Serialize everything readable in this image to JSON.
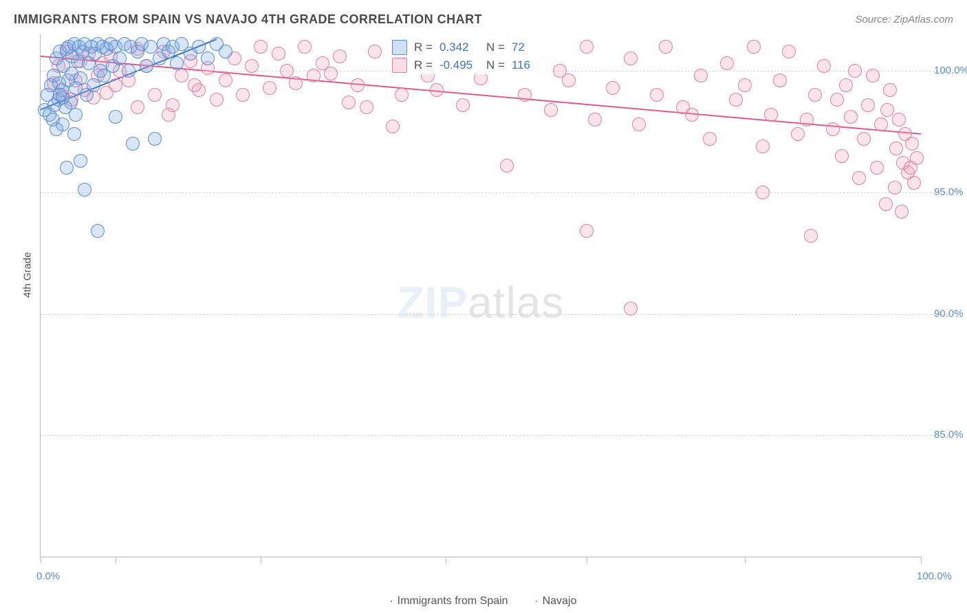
{
  "title": "IMMIGRANTS FROM SPAIN VS NAVAJO 4TH GRADE CORRELATION CHART",
  "source": "Source: ZipAtlas.com",
  "watermark_bold": "ZIP",
  "watermark_light": "atlas",
  "ylabel": "4th Grade",
  "chart": {
    "type": "scatter",
    "xlim": [
      0,
      100
    ],
    "ylim": [
      80,
      101.5
    ],
    "xtick_positions": [
      0,
      8.5,
      25,
      46,
      62,
      80,
      100
    ],
    "xtick_labels": {
      "0": "0.0%",
      "100": "100.0%"
    },
    "ytick_positions": [
      85,
      90,
      95,
      100
    ],
    "ytick_labels": {
      "85": "85.0%",
      "90": "90.0%",
      "95": "95.0%",
      "100": "100.0%"
    },
    "background": "#ffffff",
    "grid_color": "#d8d8d8",
    "axis_color": "#bbbbbb",
    "tick_label_color": "#5b8cd6"
  },
  "series": {
    "blue": {
      "label": "Immigrants from Spain",
      "color_fill": "rgba(120,165,224,0.28)",
      "color_stroke": "#5b8cd6",
      "marker_size": 18,
      "R": "0.342",
      "N": "72",
      "trend": {
        "x1": 0,
        "y1": 98.4,
        "x2": 20,
        "y2": 101.3,
        "color": "#2e6cc0",
        "width": 2
      },
      "points": [
        [
          0.5,
          98.4
        ],
        [
          0.8,
          99.0
        ],
        [
          1.0,
          98.2
        ],
        [
          1.2,
          99.4
        ],
        [
          1.4,
          98.0
        ],
        [
          1.5,
          99.8
        ],
        [
          1.6,
          98.6
        ],
        [
          1.8,
          100.5
        ],
        [
          2.0,
          98.8
        ],
        [
          2.1,
          99.5
        ],
        [
          2.2,
          100.8
        ],
        [
          2.4,
          99.2
        ],
        [
          2.5,
          97.8
        ],
        [
          2.6,
          100.2
        ],
        [
          2.8,
          98.5
        ],
        [
          3.0,
          100.9
        ],
        [
          3.1,
          99.6
        ],
        [
          3.2,
          101.0
        ],
        [
          3.4,
          98.7
        ],
        [
          3.5,
          99.9
        ],
        [
          3.6,
          100.6
        ],
        [
          3.8,
          101.1
        ],
        [
          4.0,
          99.3
        ],
        [
          4.2,
          100.4
        ],
        [
          4.4,
          101.0
        ],
        [
          4.5,
          99.7
        ],
        [
          4.8,
          100.8
        ],
        [
          5.0,
          101.1
        ],
        [
          5.2,
          99.0
        ],
        [
          5.5,
          100.3
        ],
        [
          5.8,
          101.0
        ],
        [
          6.0,
          99.4
        ],
        [
          6.2,
          100.7
        ],
        [
          6.5,
          101.1
        ],
        [
          6.8,
          100.0
        ],
        [
          7.0,
          101.0
        ],
        [
          7.2,
          99.8
        ],
        [
          7.5,
          100.9
        ],
        [
          8.0,
          101.1
        ],
        [
          8.2,
          100.2
        ],
        [
          8.5,
          101.0
        ],
        [
          9.0,
          100.5
        ],
        [
          9.5,
          101.1
        ],
        [
          10.0,
          100.0
        ],
        [
          10.2,
          101.0
        ],
        [
          10.5,
          97.0
        ],
        [
          11.0,
          100.8
        ],
        [
          11.5,
          101.1
        ],
        [
          12.0,
          100.2
        ],
        [
          12.5,
          101.0
        ],
        [
          13.0,
          97.2
        ],
        [
          13.5,
          100.5
        ],
        [
          14.0,
          101.1
        ],
        [
          14.5,
          100.8
        ],
        [
          15.0,
          101.0
        ],
        [
          15.5,
          100.3
        ],
        [
          16.0,
          101.1
        ],
        [
          17.0,
          100.7
        ],
        [
          18.0,
          101.0
        ],
        [
          19.0,
          100.5
        ],
        [
          20.0,
          101.1
        ],
        [
          21.0,
          100.8
        ],
        [
          3.0,
          96.0
        ],
        [
          5.0,
          95.1
        ],
        [
          8.5,
          98.1
        ],
        [
          2.5,
          98.9
        ],
        [
          4.0,
          98.2
        ],
        [
          1.8,
          97.6
        ],
        [
          6.5,
          93.4
        ],
        [
          4.5,
          96.3
        ],
        [
          3.8,
          97.4
        ],
        [
          2.2,
          99.0
        ]
      ]
    },
    "pink": {
      "label": "Navajo",
      "color_fill": "rgba(239,159,184,0.28)",
      "color_stroke": "#e77ea0",
      "marker_size": 18,
      "R": "-0.495",
      "N": "116",
      "trend": {
        "x1": 0,
        "y1": 100.6,
        "x2": 100,
        "y2": 97.4,
        "color": "#e15a87",
        "width": 2
      },
      "points": [
        [
          1.5,
          99.5
        ],
        [
          2.0,
          100.2
        ],
        [
          2.5,
          99.0
        ],
        [
          3.0,
          100.8
        ],
        [
          3.5,
          98.8
        ],
        [
          4.0,
          99.6
        ],
        [
          4.5,
          100.4
        ],
        [
          5.0,
          99.2
        ],
        [
          5.5,
          100.7
        ],
        [
          6.0,
          98.9
        ],
        [
          6.5,
          99.8
        ],
        [
          7.0,
          100.3
        ],
        [
          7.5,
          99.1
        ],
        [
          8.0,
          100.6
        ],
        [
          8.5,
          99.4
        ],
        [
          9.0,
          100.0
        ],
        [
          10.0,
          99.6
        ],
        [
          11.0,
          98.5
        ],
        [
          12.0,
          100.2
        ],
        [
          13.0,
          99.0
        ],
        [
          14.0,
          100.8
        ],
        [
          15.0,
          98.6
        ],
        [
          16.0,
          99.8
        ],
        [
          17.0,
          100.4
        ],
        [
          18.0,
          99.2
        ],
        [
          19.0,
          100.1
        ],
        [
          20.0,
          98.8
        ],
        [
          21.0,
          99.6
        ],
        [
          22.0,
          100.5
        ],
        [
          23.0,
          99.0
        ],
        [
          24.0,
          100.2
        ],
        [
          25.0,
          101.0
        ],
        [
          26.0,
          99.3
        ],
        [
          27.0,
          100.7
        ],
        [
          28.0,
          100.0
        ],
        [
          29.0,
          99.5
        ],
        [
          30.0,
          101.0
        ],
        [
          31.0,
          99.8
        ],
        [
          32.0,
          100.3
        ],
        [
          33.0,
          99.9
        ],
        [
          34.0,
          100.6
        ],
        [
          35.0,
          98.7
        ],
        [
          36.0,
          99.4
        ],
        [
          38.0,
          100.8
        ],
        [
          40.0,
          97.7
        ],
        [
          41.0,
          99.0
        ],
        [
          43.0,
          101.0
        ],
        [
          45.0,
          99.2
        ],
        [
          47.0,
          100.4
        ],
        [
          48.0,
          98.6
        ],
        [
          50.0,
          99.7
        ],
        [
          52.0,
          100.9
        ],
        [
          53.0,
          96.1
        ],
        [
          55.0,
          99.0
        ],
        [
          57.0,
          100.2
        ],
        [
          58.0,
          98.4
        ],
        [
          60.0,
          99.6
        ],
        [
          62.0,
          101.0
        ],
        [
          63.0,
          98.0
        ],
        [
          65.0,
          99.3
        ],
        [
          67.0,
          100.5
        ],
        [
          68.0,
          97.8
        ],
        [
          70.0,
          99.0
        ],
        [
          71.0,
          101.0
        ],
        [
          73.0,
          98.5
        ],
        [
          75.0,
          99.8
        ],
        [
          76.0,
          97.2
        ],
        [
          78.0,
          100.3
        ],
        [
          79.0,
          98.8
        ],
        [
          80.0,
          99.4
        ],
        [
          81.0,
          101.0
        ],
        [
          82.0,
          96.9
        ],
        [
          83.0,
          98.2
        ],
        [
          84.0,
          99.6
        ],
        [
          85.0,
          100.8
        ],
        [
          86.0,
          97.4
        ],
        [
          87.0,
          98.0
        ],
        [
          88.0,
          99.0
        ],
        [
          89.0,
          100.2
        ],
        [
          90.0,
          97.6
        ],
        [
          90.5,
          98.8
        ],
        [
          91.0,
          96.5
        ],
        [
          91.5,
          99.4
        ],
        [
          92.0,
          98.1
        ],
        [
          92.5,
          100.0
        ],
        [
          93.0,
          95.6
        ],
        [
          93.5,
          97.2
        ],
        [
          94.0,
          98.6
        ],
        [
          94.5,
          99.8
        ],
        [
          95.0,
          96.0
        ],
        [
          95.5,
          97.8
        ],
        [
          96.0,
          94.5
        ],
        [
          96.2,
          98.4
        ],
        [
          96.5,
          99.2
        ],
        [
          97.0,
          95.2
        ],
        [
          97.2,
          96.8
        ],
        [
          97.5,
          98.0
        ],
        [
          97.8,
          94.2
        ],
        [
          98.0,
          96.2
        ],
        [
          98.2,
          97.4
        ],
        [
          98.5,
          95.8
        ],
        [
          98.8,
          96.0
        ],
        [
          99.0,
          97.0
        ],
        [
          99.2,
          95.4
        ],
        [
          99.5,
          96.4
        ],
        [
          62.0,
          93.4
        ],
        [
          67.0,
          90.2
        ],
        [
          82.0,
          95.0
        ],
        [
          11.0,
          100.9
        ],
        [
          14.5,
          98.2
        ],
        [
          17.5,
          99.4
        ],
        [
          37.0,
          98.5
        ],
        [
          44.0,
          99.8
        ],
        [
          87.5,
          93.2
        ],
        [
          59.0,
          100.0
        ],
        [
          74.0,
          98.2
        ]
      ]
    }
  },
  "stats_labels": {
    "R": "R =",
    "N": "N ="
  },
  "legend": [
    {
      "swatch": "blue",
      "label": "Immigrants from Spain"
    },
    {
      "swatch": "pink",
      "label": "Navajo"
    }
  ]
}
